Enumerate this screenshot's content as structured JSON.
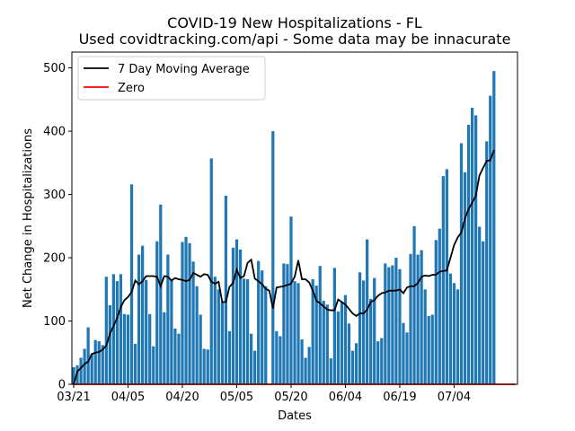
{
  "chart_data": {
    "type": "bar",
    "title": "COVID-19 New Hospitalizations - FL",
    "subtitle": "Used covidtracking.com/api - Some data may be innacurate",
    "xlabel": "Dates",
    "ylabel": "Net Change in Hospitalizations",
    "ylim": [
      0,
      525
    ],
    "yticks": [
      0,
      100,
      200,
      300,
      400,
      500
    ],
    "x_tick_labels": [
      "03/21",
      "04/05",
      "04/20",
      "05/05",
      "05/20",
      "06/04",
      "06/19",
      "07/04"
    ],
    "x_tick_dates": [
      "2020-03-21",
      "2020-04-05",
      "2020-04-20",
      "2020-05-05",
      "2020-05-20",
      "2020-06-04",
      "2020-06-19",
      "2020-07-04"
    ],
    "x_start": "2020-03-21",
    "x_end": "2020-07-21",
    "legend_position": "top-left",
    "bar_color": "#1f77b4",
    "series": [
      {
        "name": "Net Change in Hospitalizations",
        "type": "bar",
        "values": [
          27,
          30,
          42,
          56,
          90,
          48,
          70,
          68,
          62,
          170,
          125,
          174,
          163,
          174,
          111,
          110,
          316,
          64,
          205,
          219,
          165,
          111,
          60,
          226,
          284,
          114,
          205,
          165,
          88,
          80,
          225,
          233,
          223,
          194,
          155,
          110,
          56,
          55,
          357,
          170,
          150,
          130,
          298,
          84,
          216,
          229,
          213,
          167,
          166,
          80,
          53,
          195,
          180,
          155,
          0,
          400,
          84,
          76,
          191,
          190,
          265,
          163,
          160,
          71,
          42,
          59,
          166,
          156,
          187,
          132,
          126,
          41,
          184,
          115,
          130,
          141,
          96,
          53,
          65,
          177,
          164,
          229,
          135,
          168,
          68,
          73,
          191,
          185,
          188,
          200,
          182,
          97,
          82,
          206,
          250,
          205,
          212,
          150,
          108,
          110,
          228,
          246,
          329,
          340,
          175,
          160,
          150,
          381,
          335,
          410,
          437,
          425,
          249,
          226,
          384,
          456,
          495
        ]
      },
      {
        "name": "7 Day Moving Average",
        "type": "line",
        "color": "#000000",
        "values": [
          0,
          20,
          26,
          32,
          36,
          48,
          50,
          51,
          55,
          61,
          80,
          92,
          105,
          122,
          133,
          138,
          146,
          164,
          158,
          163,
          171,
          171,
          171,
          170,
          155,
          171,
          170,
          164,
          168,
          166,
          165,
          163,
          165,
          176,
          173,
          170,
          174,
          173,
          162,
          159,
          162,
          130,
          130,
          154,
          160,
          181,
          168,
          171,
          192,
          197,
          167,
          163,
          158,
          151,
          148,
          120,
          153,
          154,
          155,
          157,
          159,
          170,
          196,
          166,
          166,
          161,
          148,
          132,
          128,
          123,
          118,
          117,
          117,
          134,
          130,
          126,
          119,
          112,
          108,
          112,
          112,
          118,
          130,
          133,
          140,
          144,
          145,
          148,
          148,
          148,
          150,
          144,
          153,
          155,
          155,
          160,
          170,
          172,
          171,
          173,
          173,
          178,
          179,
          180,
          200,
          220,
          232,
          240,
          262,
          277,
          287,
          298,
          330,
          342,
          353,
          354,
          370
        ]
      },
      {
        "name": "Zero",
        "type": "line",
        "color": "#ff0000",
        "value": 0
      }
    ]
  }
}
